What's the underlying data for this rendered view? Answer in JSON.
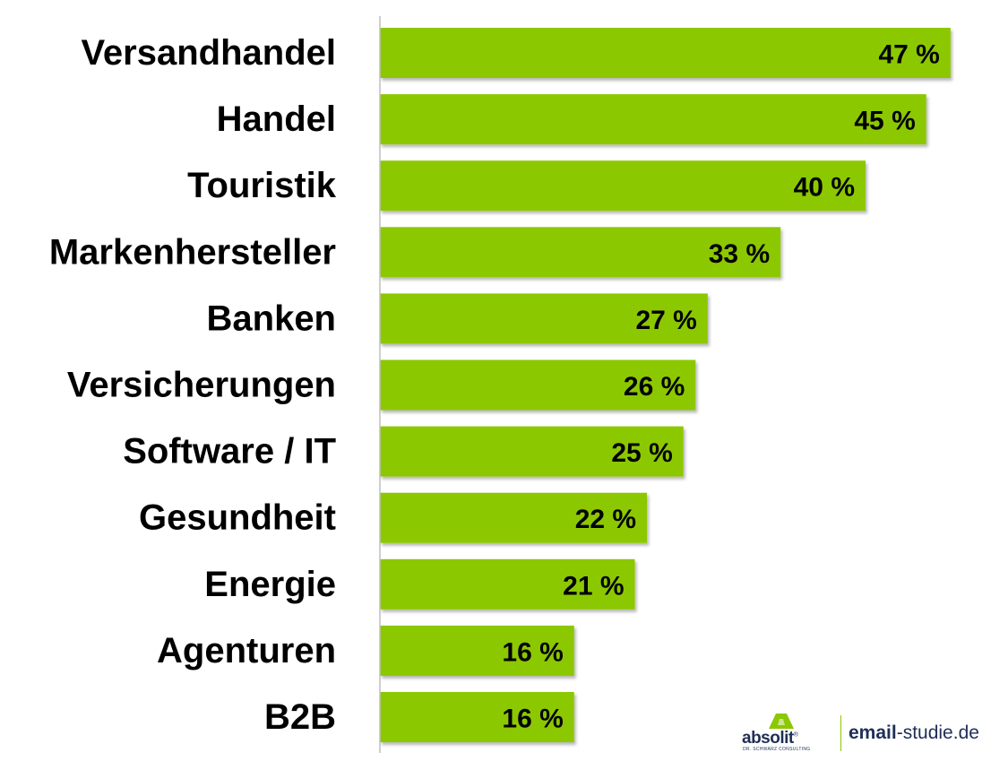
{
  "chart_data": {
    "type": "bar",
    "orientation": "horizontal",
    "categories": [
      "Versandhandel",
      "Handel",
      "Touristik",
      "Markenhersteller",
      "Banken",
      "Versicherungen",
      "Software / IT",
      "Gesundheit",
      "Energie",
      "Agenturen",
      "B2B"
    ],
    "values": [
      47,
      45,
      40,
      33,
      27,
      26,
      25,
      22,
      21,
      16,
      16
    ],
    "value_labels": [
      "47 %",
      "45 %",
      "40 %",
      "33 %",
      "27 %",
      "26 %",
      "25 %",
      "22 %",
      "21 %",
      "16 %",
      "16 %"
    ],
    "unit": "%",
    "bar_color": "#8cc800",
    "xlim": [
      0,
      50
    ],
    "grid": false,
    "legend": "none"
  },
  "branding": {
    "logo_text": "absolit",
    "logo_registered": "®",
    "logo_subtitle": "DR. SCHWARZ CONSULTING",
    "site_bold": "email",
    "site_rest": "-studie.de",
    "brand_color": "#1f2f55",
    "accent_color": "#8cc800"
  }
}
